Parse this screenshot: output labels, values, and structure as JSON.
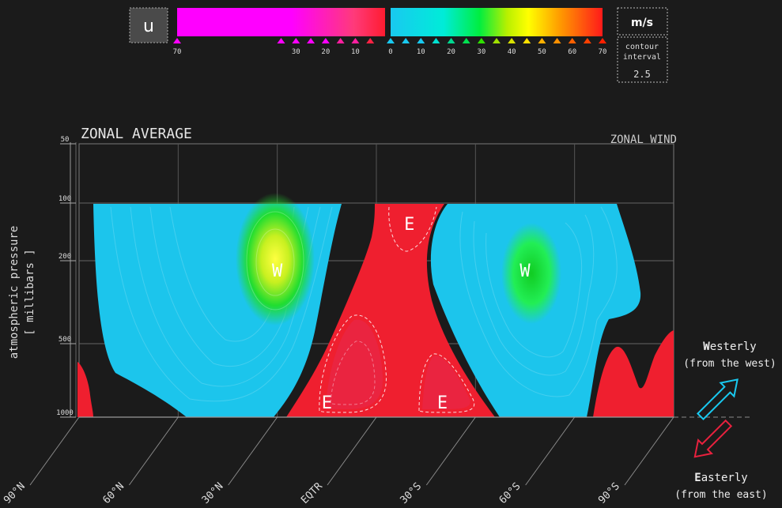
{
  "header": {
    "variable_label": "u",
    "units_label": "m/s",
    "contour_interval_label": "contour\ninterval",
    "contour_interval_value": "2.5"
  },
  "colors": {
    "background": "#1b1b1b",
    "easterly_gradient": [
      "#ff00ff",
      "#ff00ff",
      "#ff2a6a",
      "#ff1c36"
    ],
    "westerly_gradient": [
      "#19c9f0",
      "#00e8e0",
      "#00ee50",
      "#a8f000",
      "#ffff00",
      "#ffa000",
      "#ff5000",
      "#ff1c1c"
    ],
    "westerly_fill": "#1cc5ec",
    "easterly_fill": "#ef1f2f",
    "jet_core_yellow": "#ffff30",
    "jet_core_green": "#22dd22",
    "easterly_arrow": "#e8213e",
    "westerly_arrow": "#19c9f0"
  },
  "legend": {
    "easterly_ticks": [
      "70",
      "30",
      "20",
      "10"
    ],
    "westerly_ticks": [
      "0",
      "10",
      "20",
      "30",
      "40",
      "50",
      "60",
      "70"
    ]
  },
  "chart_data": {
    "type": "heatmap",
    "title": "ZONAL AVERAGE",
    "subtitle": "ZONAL WIND",
    "ylabel": "atmospheric pressure\n[ millibars ]",
    "pressure_ticks": [
      "50",
      "100",
      "200",
      "500",
      "1000"
    ],
    "latitude_ticks": [
      "90°N",
      "60°N",
      "30°N",
      "EQTR",
      "30°S",
      "60°S",
      "90°S"
    ],
    "value_range_ms": [
      -70,
      70
    ],
    "contour_interval_ms": 2.5,
    "y_scale": "log-pressure (inverted)",
    "regions": [
      {
        "label": "W",
        "type": "westerly jet",
        "latitude_deg": 30,
        "latitude_hemisphere": "N",
        "pressure_mb": 200
      },
      {
        "label": "W",
        "type": "westerly jet",
        "latitude_deg": 45,
        "latitude_hemisphere": "S",
        "pressure_mb": 200
      },
      {
        "label": "E",
        "type": "easterlies",
        "latitude_deg": 10,
        "latitude_hemisphere": "S",
        "pressure_mb": 120
      },
      {
        "label": "E",
        "type": "easterlies",
        "latitude_deg": 15,
        "latitude_hemisphere": "N",
        "pressure_mb": 850
      },
      {
        "label": "E",
        "type": "easterlies",
        "latitude_deg": 20,
        "latitude_hemisphere": "S",
        "pressure_mb": 850
      }
    ]
  },
  "annotations": {
    "westerly_title": "Westerly",
    "westerly_sub": "(from the west)",
    "easterly_title": "Easterly",
    "easterly_sub": "(from the east)"
  }
}
